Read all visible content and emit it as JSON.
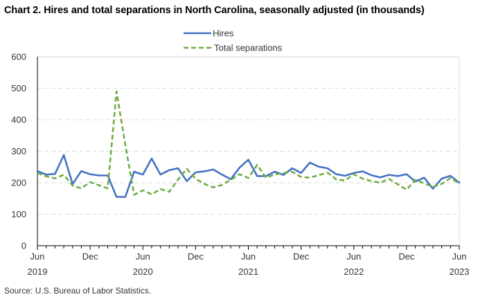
{
  "chart_data": {
    "type": "line",
    "title": "Chart 2. Hires and total separations in North Carolina, seasonally adjusted (in thousands)",
    "xlabel": "",
    "ylabel": "",
    "ylim": [
      0,
      600
    ],
    "y_ticks": [
      "0",
      "100",
      "200",
      "300",
      "400",
      "500",
      "600"
    ],
    "y_tick_values": [
      0,
      100,
      200,
      300,
      400,
      500,
      600
    ],
    "x_range": [
      "Jun 2019",
      "Jun 2023"
    ],
    "x_tick_labels": [
      {
        "month": "Jun",
        "year": "2019",
        "index": 0
      },
      {
        "month": "Dec",
        "year": "",
        "index": 6
      },
      {
        "month": "Jun",
        "year": "2020",
        "index": 12
      },
      {
        "month": "Dec",
        "year": "",
        "index": 18
      },
      {
        "month": "Jun",
        "year": "2021",
        "index": 24
      },
      {
        "month": "Dec",
        "year": "",
        "index": 30
      },
      {
        "month": "Jun",
        "year": "2022",
        "index": 36
      },
      {
        "month": "Dec",
        "year": "",
        "index": 42
      },
      {
        "month": "Jun",
        "year": "2023",
        "index": 48
      }
    ],
    "grid": true,
    "legend_position": "top-center",
    "series": [
      {
        "name": "Hires",
        "color": "#4472C4",
        "style": "solid",
        "values": [
          237,
          226,
          228,
          288,
          196,
          237,
          227,
          223,
          223,
          155,
          155,
          235,
          226,
          277,
          226,
          240,
          246,
          205,
          233,
          236,
          242,
          226,
          211,
          248,
          273,
          221,
          221,
          235,
          225,
          246,
          231,
          264,
          251,
          246,
          227,
          222,
          231,
          236,
          224,
          217,
          225,
          221,
          227,
          204,
          216,
          181,
          213,
          222,
          200
        ]
      },
      {
        "name": "Total separations",
        "color": "#70AD47",
        "style": "dashed",
        "values": [
          231,
          220,
          214,
          225,
          191,
          182,
          202,
          192,
          182,
          490,
          320,
          162,
          176,
          163,
          180,
          171,
          210,
          244,
          213,
          196,
          185,
          193,
          209,
          227,
          215,
          257,
          216,
          226,
          231,
          235,
          218,
          216,
          224,
          232,
          210,
          207,
          227,
          213,
          205,
          200,
          212,
          195,
          178,
          209,
          198,
          187,
          196,
          215,
          198
        ]
      }
    ]
  },
  "source": "Source: U.S. Bureau of Labor Statistics."
}
